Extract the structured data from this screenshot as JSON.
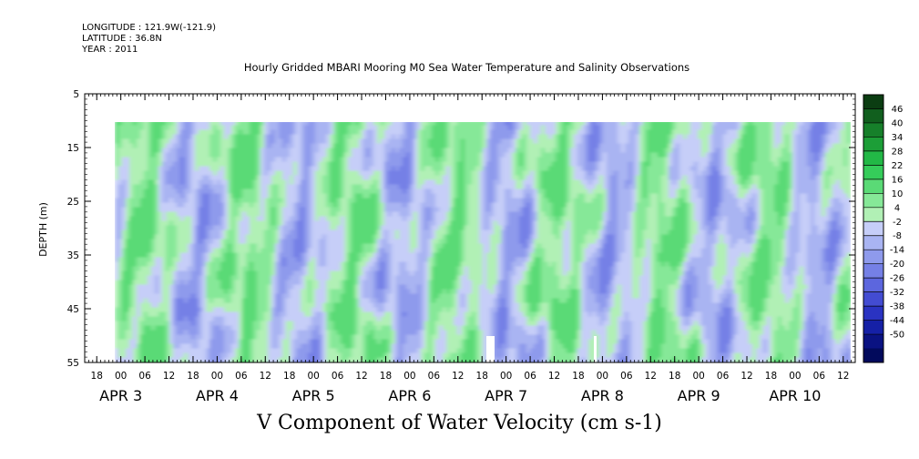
{
  "header": {
    "longitude": "LONGITUDE : 121.9W(-121.9)",
    "latitude": "LATITUDE : 36.8N",
    "year": "YEAR : 2011"
  },
  "chart_data": {
    "type": "heatmap",
    "title": "Hourly Gridded MBARI Mooring M0 Sea Water Temperature and Salinity Observations",
    "xlabel": "V Component of Water Velocity (cm s-1)",
    "ylabel": "DEPTH (m)",
    "ylim": [
      55,
      5
    ],
    "y_ticks": [
      "5",
      "15",
      "25",
      "35",
      "45",
      "55"
    ],
    "x_start": "2011-04-02T15:00",
    "x_end": "2011-04-10T15:00",
    "data_depth_range": [
      10,
      55
    ],
    "x_hour_ticks": [
      "18",
      "00",
      "06",
      "12",
      "18",
      "00",
      "06",
      "12",
      "18",
      "00",
      "06",
      "12",
      "18",
      "00",
      "06",
      "12",
      "18",
      "00",
      "06",
      "12",
      "18",
      "00",
      "06",
      "12",
      "18",
      "00",
      "06",
      "12",
      "18",
      "00",
      "06",
      "12"
    ],
    "x_day_labels": [
      {
        "month": "APR",
        "day": "3"
      },
      {
        "month": "APR",
        "day": "4"
      },
      {
        "month": "APR",
        "day": "5"
      },
      {
        "month": "APR",
        "day": "6"
      },
      {
        "month": "APR",
        "day": "7"
      },
      {
        "month": "APR",
        "day": "8"
      },
      {
        "month": "APR",
        "day": "9"
      },
      {
        "month": "APR",
        "day": "10"
      }
    ],
    "colorbar": {
      "tick_labels": [
        "46",
        "40",
        "34",
        "28",
        "22",
        "16",
        "10",
        "4",
        "-2",
        "-8",
        "-14",
        "-20",
        "-26",
        "-32",
        "-38",
        "-44",
        "-50"
      ],
      "colors": [
        "#0b3d12",
        "#115f1e",
        "#16802a",
        "#1c9e37",
        "#22b846",
        "#35cc5a",
        "#5ada76",
        "#86e898",
        "#b1f0b5",
        "#c6cef8",
        "#a9b4f2",
        "#8e9aec",
        "#7580e6",
        "#5c66de",
        "#434cd2",
        "#2a33c2",
        "#1520a6",
        "#0a1282",
        "#020a5c"
      ]
    }
  }
}
